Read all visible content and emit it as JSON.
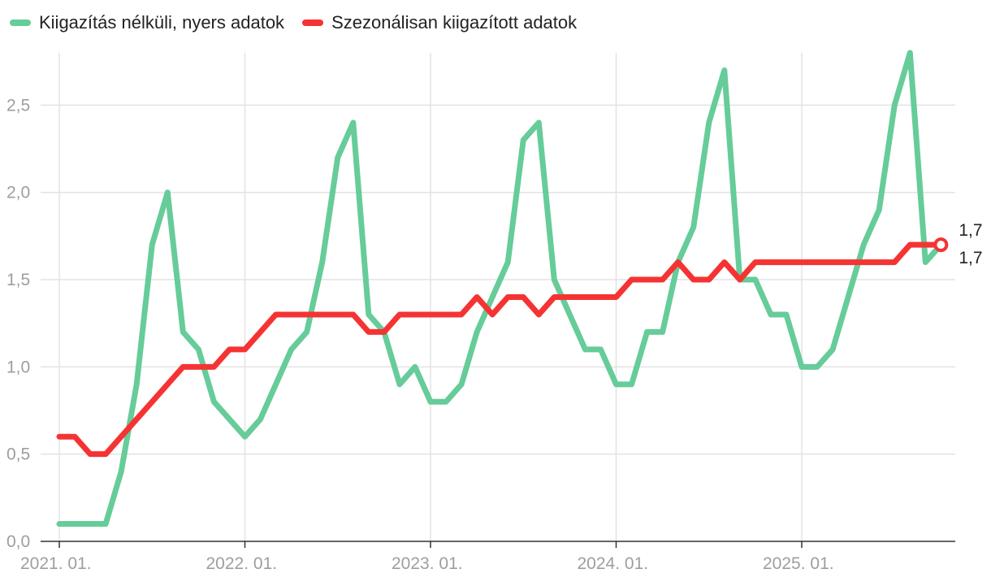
{
  "chart_data": {
    "type": "line",
    "title": "",
    "xlabel": "",
    "ylabel": "",
    "ylim": [
      0,
      2.8
    ],
    "yticks": [
      "0,0",
      "0,5",
      "1,0",
      "1,5",
      "2,0",
      "2,5"
    ],
    "yticks_values": [
      0,
      0.5,
      1.0,
      1.5,
      2.0,
      2.5
    ],
    "xticks": [
      "2021. 01.",
      "2022. 01.",
      "2023. 01.",
      "2024. 01.",
      "2025. 01."
    ],
    "xticks_index": [
      0,
      12,
      24,
      36,
      48
    ],
    "grid": true,
    "legend_position": "top-left",
    "x_start": "2021-01",
    "x_step": "month",
    "series": [
      {
        "name": "Kiigazítás nélküli, nyers adatok",
        "color": "#66cc99",
        "values": [
          0.1,
          0.1,
          0.1,
          0.1,
          0.4,
          0.9,
          1.7,
          2.0,
          1.2,
          1.1,
          0.8,
          0.7,
          0.6,
          0.7,
          0.9,
          1.1,
          1.2,
          1.6,
          2.2,
          2.4,
          1.3,
          1.2,
          0.9,
          1.0,
          0.8,
          0.8,
          0.9,
          1.2,
          1.4,
          1.6,
          2.3,
          2.4,
          1.5,
          1.3,
          1.1,
          1.1,
          0.9,
          0.9,
          1.2,
          1.2,
          1.6,
          1.8,
          2.4,
          2.7,
          1.5,
          1.5,
          1.3,
          1.3,
          1.0,
          1.0,
          1.1,
          1.4,
          1.7,
          1.9,
          2.5,
          2.8,
          1.6,
          1.7
        ],
        "end_label": "1,7"
      },
      {
        "name": "Szezonálisan kiigazított adatok",
        "color": "#f53333",
        "values": [
          0.6,
          0.6,
          0.5,
          0.5,
          0.6,
          0.7,
          0.8,
          0.9,
          1.0,
          1.0,
          1.0,
          1.1,
          1.1,
          1.2,
          1.3,
          1.3,
          1.3,
          1.3,
          1.3,
          1.3,
          1.2,
          1.2,
          1.3,
          1.3,
          1.3,
          1.3,
          1.3,
          1.4,
          1.3,
          1.4,
          1.4,
          1.3,
          1.4,
          1.4,
          1.4,
          1.4,
          1.4,
          1.5,
          1.5,
          1.5,
          1.6,
          1.5,
          1.5,
          1.6,
          1.5,
          1.6,
          1.6,
          1.6,
          1.6,
          1.6,
          1.6,
          1.6,
          1.6,
          1.6,
          1.6,
          1.7,
          1.7,
          1.7
        ],
        "end_label": "1,7"
      }
    ]
  }
}
